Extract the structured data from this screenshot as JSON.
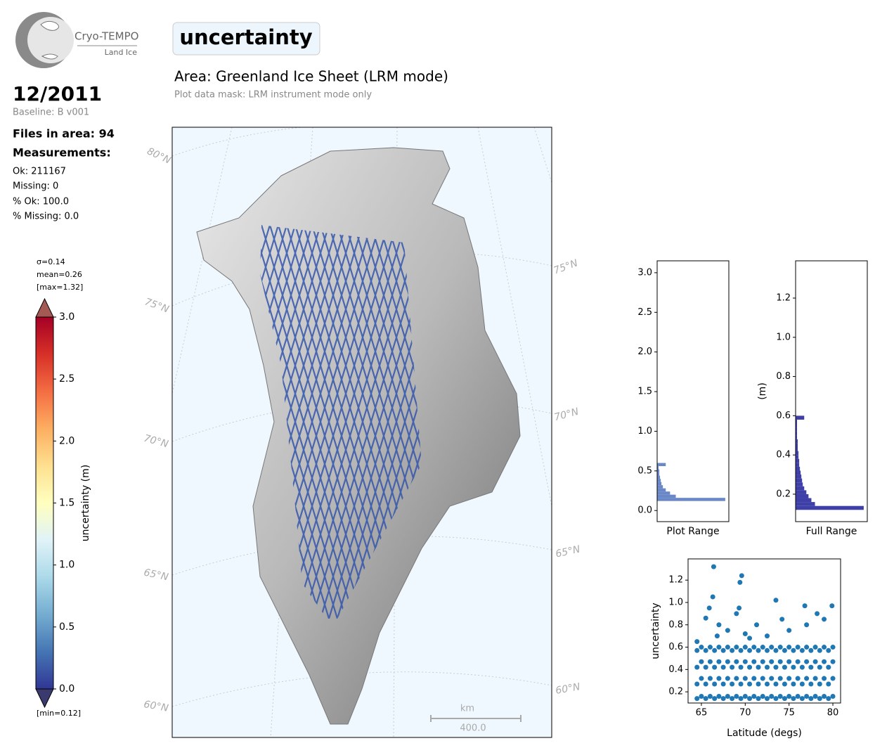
{
  "header": {
    "logo_title": "Cryo-TEMPO",
    "logo_subtitle": "Land Ice",
    "param": "uncertainty",
    "date": "12/2011",
    "baseline": "Baseline: B v001",
    "files": "Files in area: 94",
    "measurements": "Measurements:",
    "stats": [
      "Ok: 211167",
      "Missing: 0",
      "% Ok: 100.0",
      "% Missing: 0.0"
    ],
    "area": "Area: Greenland Ice Sheet (LRM mode)",
    "mask": "Plot data mask: LRM instrument mode only"
  },
  "map": {
    "lat_labels_left": [
      "80°N",
      "75°N",
      "70°N",
      "65°N",
      "60°N"
    ],
    "lat_labels_right": [
      "75°N",
      "70°N",
      "65°N",
      "60°N"
    ],
    "scale_unit": "km",
    "scale_value": "400.0"
  },
  "chart_data": [
    {
      "type": "colorbar",
      "label": "uncertainty (m)",
      "ylim": [
        0,
        3
      ],
      "yticks": [
        {
          "value": 0,
          "label": "0.0"
        },
        {
          "value": 0.5,
          "label": "0.5"
        },
        {
          "value": 1,
          "label": "1.0"
        },
        {
          "value": 1.5,
          "label": "1.5"
        },
        {
          "value": 2,
          "label": "2.0"
        },
        {
          "value": 2.5,
          "label": "2.5"
        },
        {
          "value": 3,
          "label": "3.0"
        }
      ],
      "colors": [
        "#313695",
        "#4575b4",
        "#74add1",
        "#abd9e9",
        "#e0f3f8",
        "#ffffbf",
        "#fee090",
        "#fdae61",
        "#f46d43",
        "#d73027",
        "#a50026"
      ],
      "over_color": "#a45a52",
      "under_color": "#3a3a6e",
      "annotations": [
        "σ=0.14",
        "mean=0.26",
        "[max=1.32]",
        "[min=0.12]"
      ]
    },
    {
      "type": "histogram",
      "orientation": "horizontal",
      "xlabel": "Plot Range",
      "color": "#6a88c8",
      "bins": [
        0.12,
        0.16,
        0.2,
        0.24,
        0.28,
        0.32,
        0.36,
        0.4,
        0.44,
        0.48,
        0.52,
        0.56,
        0.6
      ],
      "values": [
        95,
        26,
        18,
        12,
        8,
        6,
        5,
        4,
        3,
        3,
        2,
        12
      ],
      "xlim": [
        0,
        100
      ],
      "ylim": [
        -0.14,
        3.15
      ],
      "yticks": [
        {
          "value": 0,
          "label": "0.0"
        },
        {
          "value": 0.5,
          "label": "0.5"
        },
        {
          "value": 1,
          "label": "1.0"
        },
        {
          "value": 1.5,
          "label": "1.5"
        },
        {
          "value": 2,
          "label": "2.0"
        },
        {
          "value": 2.5,
          "label": "2.5"
        },
        {
          "value": 3,
          "label": "3.0"
        }
      ]
    },
    {
      "type": "histogram",
      "orientation": "horizontal",
      "xlabel": "Full Range",
      "ylabel": "(m)",
      "color": "#3f3fa8",
      "bins": [
        0.12,
        0.14,
        0.16,
        0.18,
        0.2,
        0.22,
        0.24,
        0.26,
        0.28,
        0.3,
        0.32,
        0.34,
        0.36,
        0.38,
        0.4,
        0.42,
        0.44,
        0.46,
        0.48,
        0.5,
        0.52,
        0.54,
        0.56,
        0.58,
        0.6
      ],
      "values": [
        95,
        27,
        22,
        18,
        15,
        12,
        10,
        9,
        8,
        7,
        6,
        5,
        5,
        4,
        4,
        3,
        3,
        3,
        2,
        2,
        2,
        2,
        2,
        12
      ],
      "xlim": [
        0,
        100
      ],
      "ylim": [
        0.06,
        1.39
      ],
      "yticks": [
        0.2,
        0.4,
        0.6,
        0.8,
        {
          "value": 1,
          "label": "1.0"
        },
        1.2
      ]
    },
    {
      "type": "scatter",
      "xlabel": "Latitude (degs)",
      "ylabel": "uncertainty",
      "color": "#1f77b4",
      "xlim": [
        63.48,
        80.88
      ],
      "ylim": [
        0.1,
        1.39
      ],
      "xticks": [
        65,
        70,
        75,
        80
      ],
      "yticks": [
        0.2,
        0.4,
        0.6,
        0.8,
        {
          "value": 1,
          "label": "1.0"
        },
        1.2
      ],
      "x": [
        64.5,
        64.5,
        64.5,
        64.5,
        65,
        65,
        65,
        65,
        65.5,
        65.5,
        65.5,
        65.5,
        66,
        66,
        66,
        66,
        66.5,
        66.5,
        66.5,
        66.5,
        67,
        67,
        67,
        67,
        67.5,
        67.5,
        67.5,
        67.5,
        68,
        68,
        68,
        68,
        68.5,
        68.5,
        68.5,
        68.5,
        69,
        69,
        69,
        69,
        69.5,
        69.5,
        69.5,
        69.5,
        70,
        70,
        70,
        70,
        70.5,
        70.5,
        70.5,
        70.5,
        71,
        71,
        71,
        71,
        71.5,
        71.5,
        71.5,
        71.5,
        72,
        72,
        72,
        72,
        72.5,
        72.5,
        72.5,
        72.5,
        73,
        73,
        73,
        73,
        73.5,
        73.5,
        73.5,
        73.5,
        74,
        74,
        74,
        74,
        74.5,
        74.5,
        74.5,
        74.5,
        75,
        75,
        75,
        75,
        75.5,
        75.5,
        75.5,
        75.5,
        76,
        76,
        76,
        76,
        76.5,
        76.5,
        76.5,
        76.5,
        77,
        77,
        77,
        77,
        77.5,
        77.5,
        77.5,
        77.5,
        78,
        78,
        78,
        78,
        78.5,
        78.5,
        78.5,
        78.5,
        79,
        79,
        79,
        79,
        79.5,
        79.5,
        79.5,
        79.5,
        80,
        80,
        80,
        80,
        66.4,
        69.6,
        69.4,
        66.3,
        65.9,
        69,
        73.5,
        76.8,
        79.9,
        78.2,
        74.2,
        71.3,
        65.5,
        67,
        68,
        70,
        72.5,
        75,
        77,
        79,
        64.5,
        66.8,
        69.3,
        70.5
      ],
      "y": [
        0.14,
        0.27,
        0.42,
        0.57,
        0.16,
        0.32,
        0.47,
        0.6,
        0.14,
        0.27,
        0.42,
        0.57,
        0.16,
        0.32,
        0.47,
        0.6,
        0.14,
        0.27,
        0.42,
        0.57,
        0.16,
        0.32,
        0.47,
        0.6,
        0.14,
        0.27,
        0.42,
        0.57,
        0.16,
        0.32,
        0.47,
        0.6,
        0.14,
        0.27,
        0.42,
        0.57,
        0.16,
        0.32,
        0.47,
        0.6,
        0.14,
        0.27,
        0.42,
        0.57,
        0.16,
        0.32,
        0.47,
        0.6,
        0.14,
        0.27,
        0.42,
        0.57,
        0.16,
        0.32,
        0.47,
        0.6,
        0.14,
        0.27,
        0.42,
        0.57,
        0.16,
        0.32,
        0.47,
        0.6,
        0.14,
        0.27,
        0.42,
        0.57,
        0.16,
        0.32,
        0.47,
        0.6,
        0.14,
        0.27,
        0.42,
        0.57,
        0.16,
        0.32,
        0.47,
        0.6,
        0.14,
        0.27,
        0.42,
        0.57,
        0.16,
        0.32,
        0.47,
        0.6,
        0.14,
        0.27,
        0.42,
        0.57,
        0.16,
        0.32,
        0.47,
        0.6,
        0.14,
        0.27,
        0.42,
        0.57,
        0.16,
        0.32,
        0.47,
        0.6,
        0.14,
        0.27,
        0.42,
        0.57,
        0.16,
        0.32,
        0.47,
        0.6,
        0.14,
        0.27,
        0.42,
        0.57,
        0.16,
        0.32,
        0.47,
        0.6,
        0.14,
        0.27,
        0.42,
        0.57,
        0.16,
        0.32,
        0.47,
        0.6,
        1.32,
        1.24,
        1.18,
        1.05,
        0.95,
        0.9,
        1.02,
        0.97,
        0.97,
        0.9,
        0.85,
        0.8,
        0.86,
        0.8,
        0.75,
        0.72,
        0.7,
        0.75,
        0.8,
        0.85,
        0.65,
        0.7,
        0.95,
        0.68
      ]
    }
  ]
}
